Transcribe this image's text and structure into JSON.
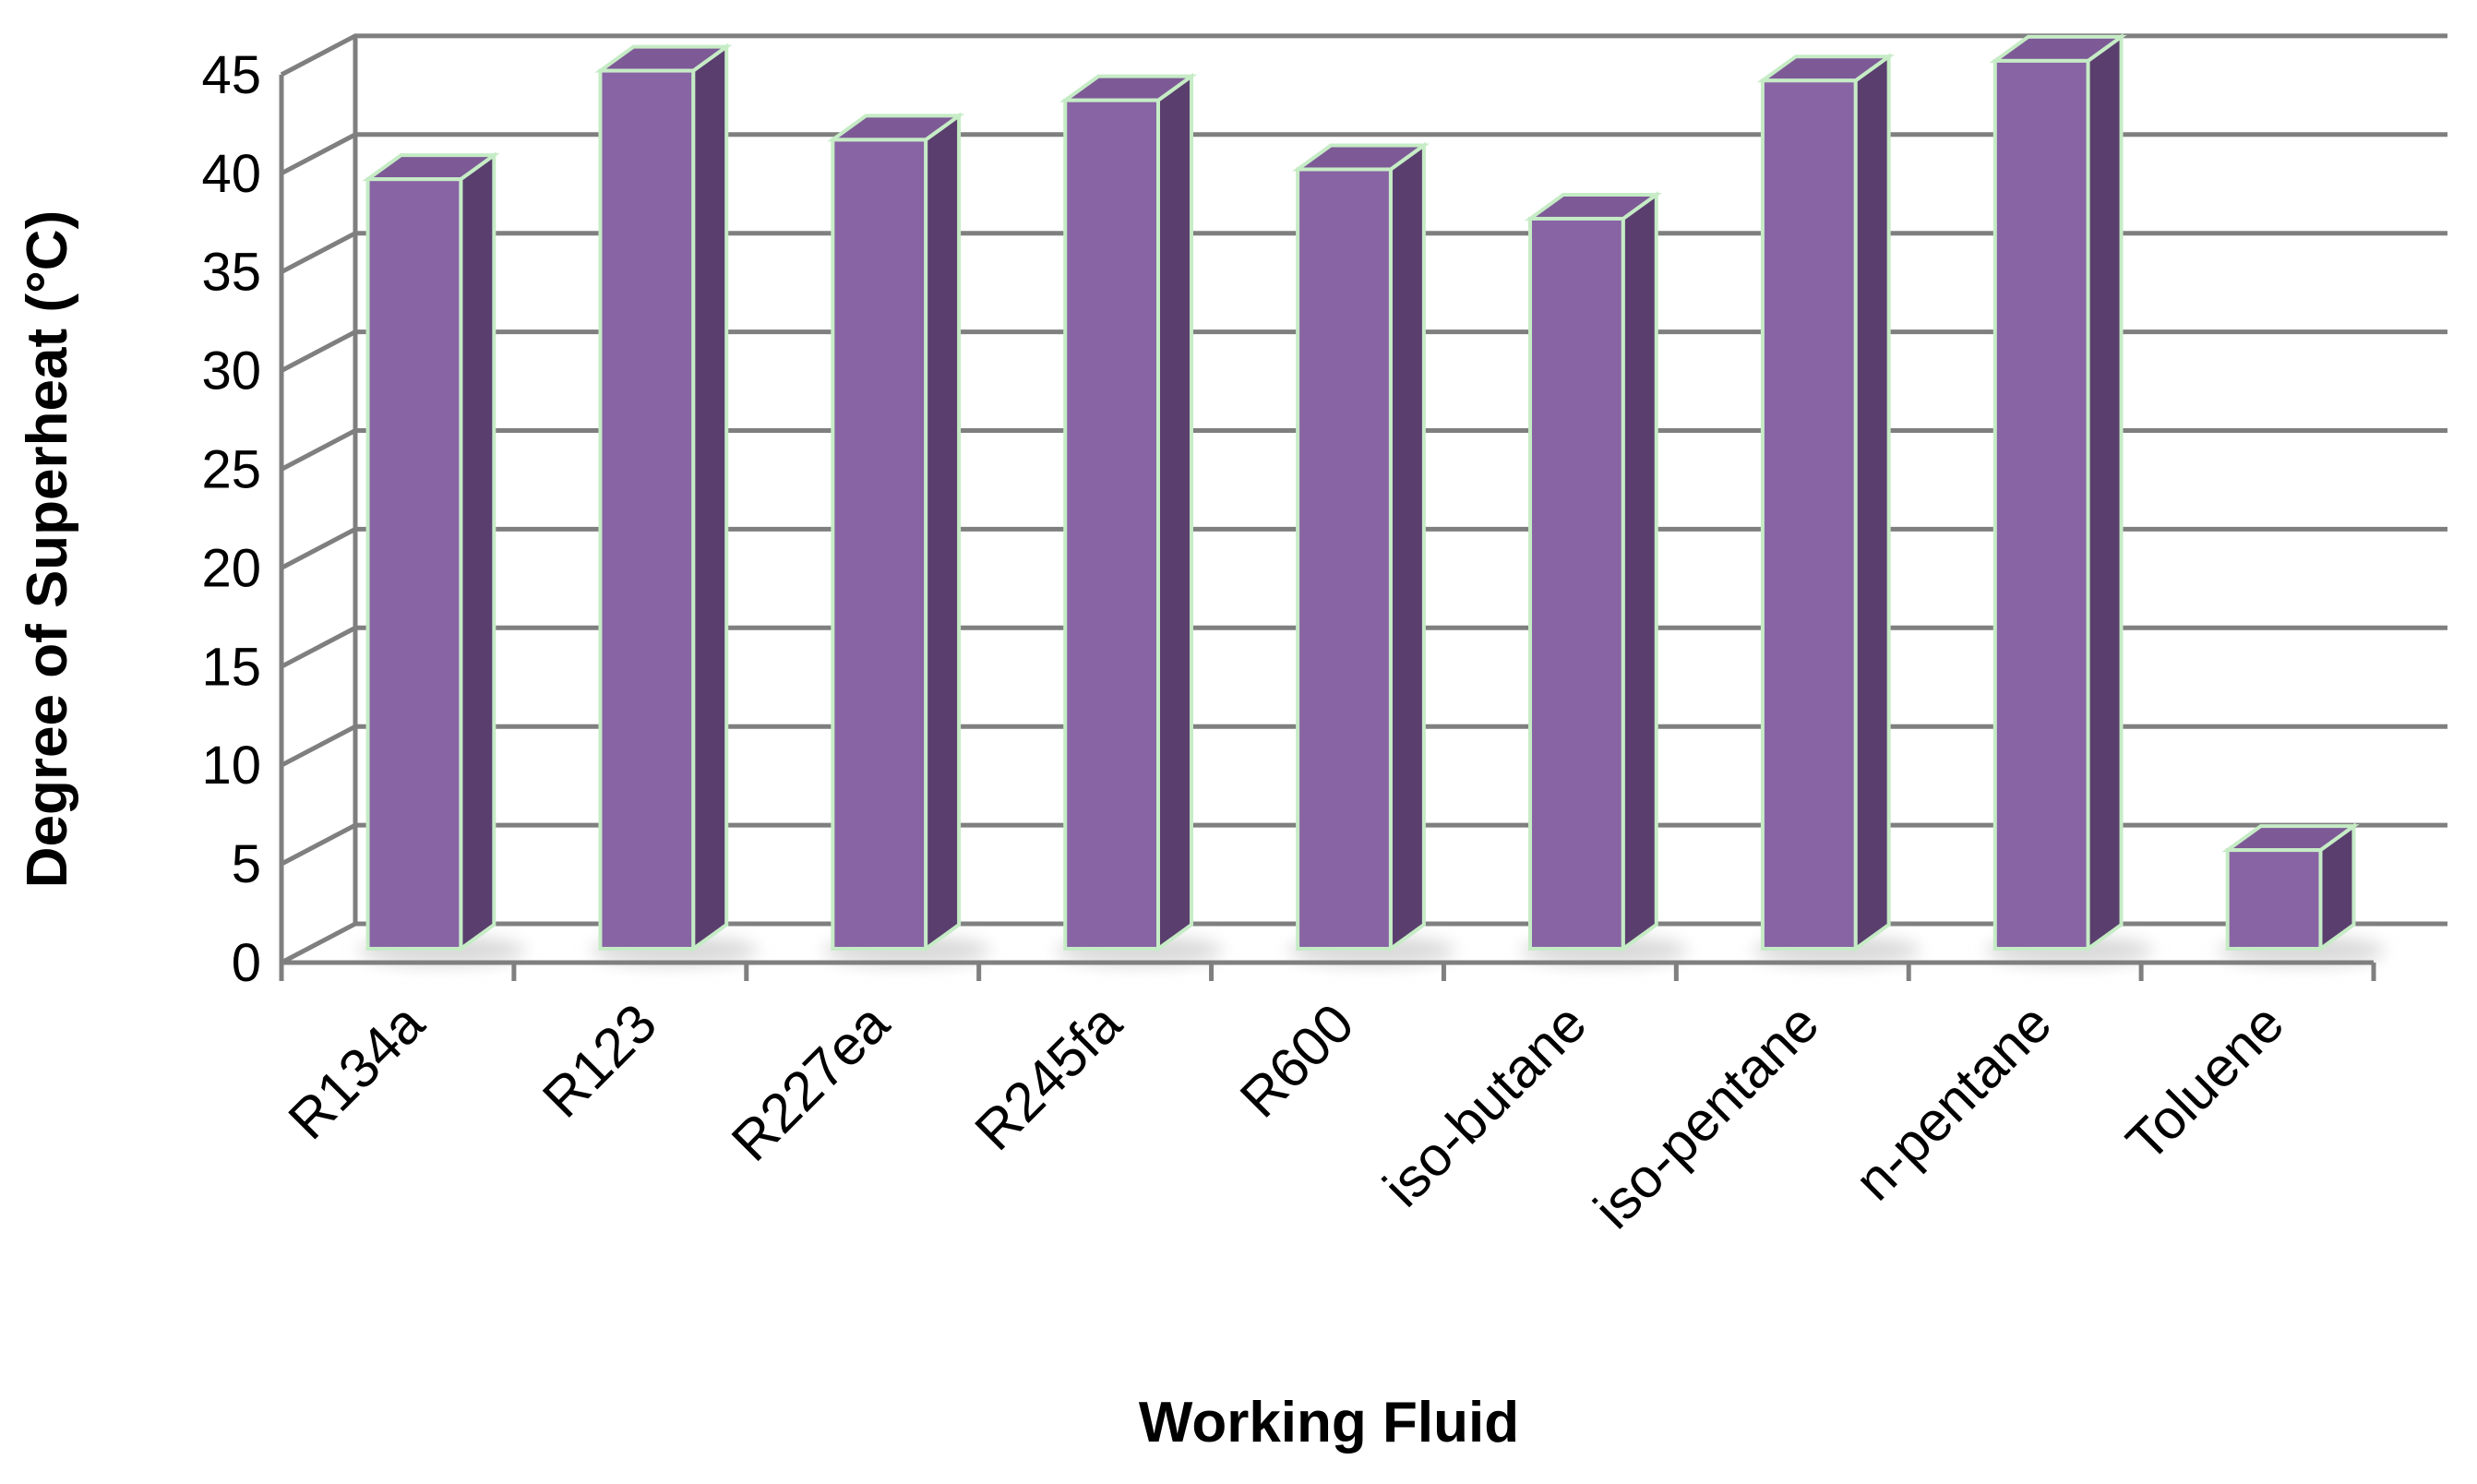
{
  "chart_data": {
    "type": "bar",
    "categories": [
      "R134a",
      "R123",
      "R227ea",
      "R245fa",
      "R600",
      "iso-butane",
      "iso-pentane",
      "n-pentane",
      "Toluene"
    ],
    "values": [
      39,
      44.5,
      41,
      43,
      39.5,
      37,
      44,
      45,
      5
    ],
    "xlabel": "Working Fluid",
    "ylabel": "Degree of Superheat (°C)",
    "ylim": [
      0,
      45
    ],
    "yticks": [
      "0",
      "5",
      "10",
      "15",
      "20",
      "25",
      "30",
      "35",
      "40",
      "45"
    ],
    "grid": true,
    "legend": "none",
    "colors": {
      "bar_front": "#8864a4",
      "bar_side": "#5a3f6e",
      "bar_top": "#7d5a96",
      "bar_edge": "#c6ecc6",
      "gridline": "#7f7f7f",
      "shadow": "#d9d9d9"
    }
  }
}
